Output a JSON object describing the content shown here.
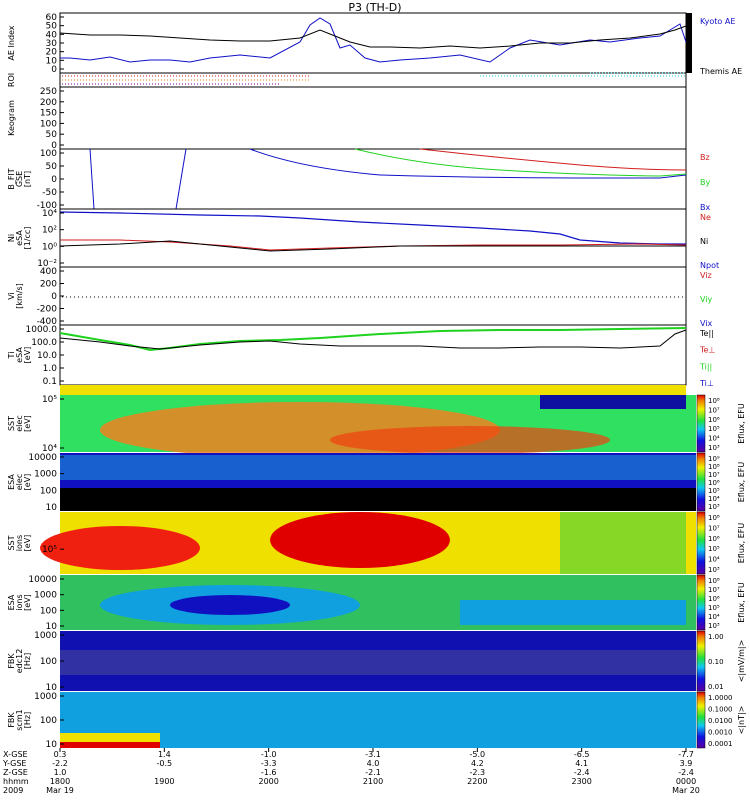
{
  "title": "P3 (TH-D)",
  "colors": {
    "blue": "#1010c8",
    "red": "#d21e1e",
    "green": "#1ed21e",
    "black": "#000000"
  },
  "panels": [
    {
      "id": "ae",
      "ylabel": [
        "AE Index"
      ],
      "ticks": [
        "60",
        "50",
        "40",
        "30",
        "20",
        "10",
        "0"
      ],
      "legend": [
        {
          "text": "Kyoto AE",
          "color": "#1010c8"
        },
        {
          "text": "Themis AE",
          "color": "#000000"
        }
      ]
    },
    {
      "id": "roi",
      "ylabel": [
        "ROI"
      ],
      "ticks": [],
      "legend": []
    },
    {
      "id": "kp",
      "ylabel": [
        "Keogram"
      ],
      "ticks": [
        "250",
        "200",
        "150",
        "100",
        "50",
        "0"
      ],
      "legend": []
    },
    {
      "id": "bfit",
      "ylabel": [
        "B_FIT",
        "GSE",
        "[nT]"
      ],
      "ticks": [
        "100",
        "50",
        "0",
        "-50",
        "-100"
      ],
      "legend": [
        {
          "text": "Bz",
          "color": "#d21e1e"
        },
        {
          "text": "By",
          "color": "#1ed21e"
        },
        {
          "text": "Bx",
          "color": "#1010c8"
        }
      ]
    },
    {
      "id": "ni",
      "ylabel": [
        "Ni",
        "eSA",
        "[1/cc]"
      ],
      "ticks": [
        "10⁴",
        "10²",
        "10⁰",
        "10⁻²"
      ],
      "legend": [
        {
          "text": "Ne",
          "color": "#d21e1e"
        },
        {
          "text": "Ni",
          "color": "#000000"
        },
        {
          "text": "Npot",
          "color": "#1010c8"
        }
      ]
    },
    {
      "id": "vi",
      "ylabel": [
        "Vi",
        "[km/s]"
      ],
      "ticks": [
        "400",
        "200",
        "0",
        "-200",
        "-400"
      ],
      "legend": [
        {
          "text": "Viz",
          "color": "#d21e1e"
        },
        {
          "text": "Viy",
          "color": "#1ed21e"
        },
        {
          "text": "Vix",
          "color": "#1010c8"
        }
      ]
    },
    {
      "id": "ti",
      "ylabel": [
        "Ti",
        "eSA",
        "[eV]"
      ],
      "ticks": [
        "1000.0",
        "100.0",
        "10.0",
        "1.0",
        "0.1"
      ],
      "legend": [
        {
          "text": "Te||",
          "color": "#000000"
        },
        {
          "text": "Te⊥",
          "color": "#d21e1e"
        },
        {
          "text": "Ti||",
          "color": "#1ed21e"
        },
        {
          "text": "Ti⊥",
          "color": "#1010c8"
        }
      ]
    },
    {
      "id": "sst_e",
      "ylabel": [
        "SST",
        "elec",
        "[eV]"
      ],
      "ticks": [
        "10⁵",
        "10⁴"
      ],
      "cbar_label": "Eflux, EFU",
      "cbar_ticks": [
        "10⁸",
        "10⁷",
        "10⁶",
        "10⁵",
        "10⁴",
        "10³"
      ]
    },
    {
      "id": "esa_e",
      "ylabel": [
        "ESA",
        "elec",
        "[eV]"
      ],
      "ticks": [
        "10000",
        "1000",
        "100",
        "10"
      ],
      "cbar_label": "Eflux, EFU",
      "cbar_ticks": [
        "10⁹",
        "10⁸",
        "10⁷",
        "10⁶",
        "10⁵",
        "10⁴",
        "10³"
      ]
    },
    {
      "id": "sst_i",
      "ylabel": [
        "SST",
        "ions",
        "[eV]"
      ],
      "ticks": [
        "10⁵"
      ],
      "cbar_label": "Eflux, EFU",
      "cbar_ticks": [
        "10⁸",
        "10⁷",
        "10⁶",
        "10⁵",
        "10⁴",
        "10³"
      ]
    },
    {
      "id": "esa_i",
      "ylabel": [
        "ESA",
        "ions",
        "[eV]"
      ],
      "ticks": [
        "10000",
        "1000",
        "100",
        "10"
      ],
      "cbar_label": "Eflux, EFU",
      "cbar_ticks": [
        "10⁸",
        "10⁷",
        "10⁶",
        "10⁵",
        "10⁴",
        "10³"
      ]
    },
    {
      "id": "fbk_b",
      "ylabel": [
        "FBK",
        "edc12",
        "[Hz]"
      ],
      "ticks": [
        "1000",
        "100",
        "10"
      ],
      "cbar_label": "<|mV/m|>",
      "cbar_ticks": [
        "1.00",
        "0.10",
        "0.01"
      ]
    },
    {
      "id": "fbk_s",
      "ylabel": [
        "FBK",
        "scm1",
        "[Hz]"
      ],
      "ticks": [
        "1000",
        "100",
        "10"
      ],
      "cbar_label": "<|nT|>",
      "cbar_ticks": [
        "1.0000",
        "0.1000",
        "0.0100",
        "0.0010",
        "0.0001"
      ]
    }
  ],
  "xaxis": {
    "row_labels": [
      "X-GSE",
      "Y-GSE",
      "Z-GSE",
      "hhmm",
      "2009"
    ],
    "columns": [
      {
        "x": "0.3",
        "y": "-2.2",
        "z": "1.0",
        "hhmm": "1800",
        "date": "Mar 19"
      },
      {
        "x": "1.4",
        "y": "-0.5",
        "z": "",
        "hhmm": "1900",
        "date": ""
      },
      {
        "x": "-1.0",
        "y": "-3.3",
        "z": "-1.6",
        "hhmm": "2000",
        "date": ""
      },
      {
        "x": "-3.1",
        "y": "4.0",
        "z": "-2.1",
        "hhmm": "2100",
        "date": ""
      },
      {
        "x": "-5.0",
        "y": "4.2",
        "z": "-2.3",
        "hhmm": "2200",
        "date": ""
      },
      {
        "x": "-6.5",
        "y": "4.1",
        "z": "-2.4",
        "hhmm": "2300",
        "date": ""
      },
      {
        "x": "-7.7",
        "y": "3.9",
        "z": "-2.4",
        "hhmm": "0000",
        "date": "Mar 20"
      }
    ]
  },
  "chart_data": {
    "type": "line",
    "title": "P3 (TH-D)",
    "x": [
      "1800",
      "1900",
      "2000",
      "2100",
      "2200",
      "2300",
      "0000"
    ],
    "series": [
      {
        "name": "Kyoto AE",
        "values": [
          18,
          12,
          14,
          50,
          24,
          22,
          45
        ]
      },
      {
        "name": "Themis AE",
        "values": [
          40,
          38,
          28,
          44,
          28,
          30,
          48
        ]
      }
    ],
    "ylabel": "AE Index",
    "ylim": [
      0,
      60
    ]
  }
}
